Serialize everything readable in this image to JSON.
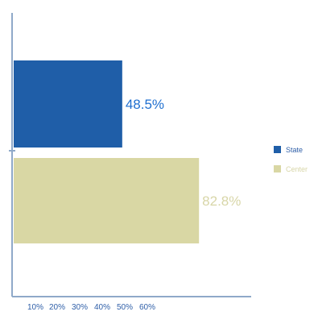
{
  "chart_data": {
    "type": "bar",
    "orientation": "horizontal",
    "title": "",
    "xlabel": "",
    "ylabel": "",
    "x_ticks": [
      "10%",
      "20%",
      "30%",
      "40%",
      "50%",
      "60%"
    ],
    "grid": false,
    "legend_position": "right",
    "series": [
      {
        "name": "State",
        "value": 48.5,
        "label": "48.5%",
        "color": "#1f5ea8",
        "label_color": "#1f6fd0"
      },
      {
        "name": "Center",
        "value": 82.8,
        "label": "82.8%",
        "color": "#d9d7a4",
        "label_color": "#d8d6a8"
      }
    ]
  }
}
